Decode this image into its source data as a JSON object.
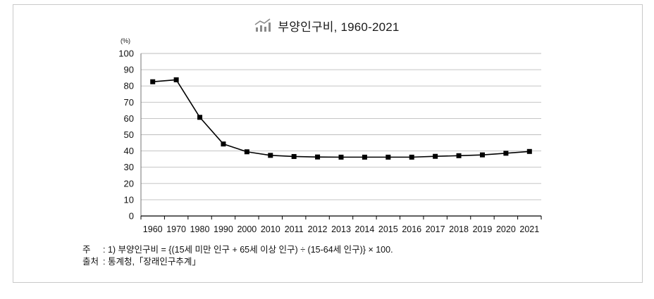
{
  "colors": {
    "line": "#000000",
    "marker": "#000000",
    "grid": "#bdbdbd",
    "axis": "#000000",
    "y_axis": "#666666",
    "frame": "#c9c9c9",
    "icon": "#8a8a8a"
  },
  "icons": {
    "title": "chart-icon"
  },
  "chart_data": {
    "type": "line",
    "title": "부양인구비, 1960-2021",
    "ylabel": "(%)",
    "categories": [
      "1960",
      "1970",
      "1980",
      "1990",
      "2000",
      "2010",
      "2011",
      "2012",
      "2013",
      "2014",
      "2015",
      "2016",
      "2017",
      "2018",
      "2019",
      "2020",
      "2021"
    ],
    "series": [
      {
        "values": [
          82.6,
          83.8,
          60.7,
          44.3,
          39.5,
          37.3,
          36.6,
          36.3,
          36.2,
          36.2,
          36.2,
          36.2,
          36.7,
          37.1,
          37.6,
          38.6,
          39.7
        ],
        "marker": "square"
      }
    ],
    "ylim": [
      0,
      100
    ],
    "yticks": [
      0,
      10,
      20,
      30,
      40,
      50,
      60,
      70,
      80,
      90,
      100
    ],
    "grid": true
  },
  "notes": {
    "note_label": "주",
    "note_text": ": 1) 부양인구비 = {(15세 미만 인구 + 65세 이상 인구) ÷ (15-64세 인구)} × 100.",
    "source_label": "출처",
    "source_text": ": 통계청,「장래인구추계」"
  }
}
